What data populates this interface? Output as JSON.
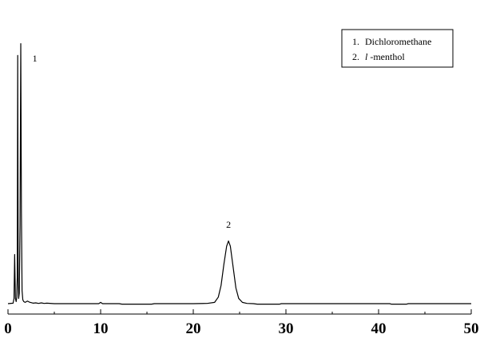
{
  "chart_data": {
    "type": "line",
    "title": "",
    "xlabel": "",
    "ylabel": "",
    "xlim": [
      0,
      50
    ],
    "x_ticks": [
      0,
      10,
      20,
      30,
      40,
      50
    ],
    "grid": false,
    "legend_position": "top-right",
    "legend": [
      {
        "number": "1.",
        "name_prefix": "",
        "name_italic": "",
        "name_suffix": "Dichloromethane"
      },
      {
        "number": "2.",
        "name_prefix": "",
        "name_italic": "l",
        "name_suffix": "-menthol"
      }
    ],
    "peak_labels": [
      {
        "label": "1",
        "x": 2.9
      },
      {
        "label": "2",
        "x": 23.8
      }
    ],
    "series": [
      {
        "x": [
          0.0,
          0.55,
          0.65,
          0.72,
          0.8,
          0.88,
          0.95,
          1.0,
          1.05,
          1.1,
          1.15,
          1.22,
          1.3,
          1.38,
          1.45,
          1.52,
          1.6,
          1.7,
          1.85,
          2.1,
          2.3,
          2.5,
          2.7,
          3.0,
          3.3,
          3.6,
          3.9,
          4.2,
          5.0,
          8.0,
          9.8,
          10.0,
          10.2,
          12.0,
          12.3,
          15.5,
          15.8,
          20.0,
          21.5,
          22.3,
          22.7,
          23.0,
          23.3,
          23.6,
          23.8,
          24.0,
          24.3,
          24.6,
          24.9,
          25.3,
          25.8,
          26.5,
          26.9,
          29.3,
          29.5,
          35.0,
          40.0,
          41.2,
          41.4,
          43.0,
          43.2,
          46.0,
          50.0
        ],
        "y": [
          0.0,
          0.2,
          2.0,
          18.8,
          2.0,
          0.8,
          2.5,
          10.0,
          95.0,
          10.0,
          2.0,
          4.0,
          30.0,
          99.5,
          35.0,
          5.0,
          1.5,
          0.8,
          0.5,
          1.0,
          0.6,
          0.4,
          0.2,
          0.3,
          0.1,
          0.3,
          0.1,
          0.2,
          0.0,
          0.0,
          0.0,
          0.5,
          0.0,
          0.0,
          -0.2,
          -0.2,
          0.0,
          0.0,
          0.1,
          0.5,
          2.5,
          7.0,
          15.0,
          22.0,
          24.0,
          22.0,
          14.0,
          6.0,
          2.0,
          0.5,
          0.1,
          0.0,
          -0.2,
          -0.2,
          0.0,
          0.0,
          0.0,
          0.0,
          -0.2,
          -0.2,
          0.0,
          0.0,
          0.0
        ]
      }
    ]
  }
}
